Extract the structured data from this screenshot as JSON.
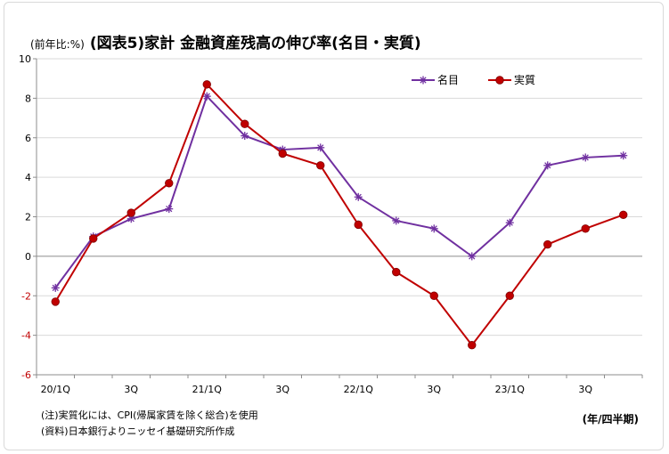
{
  "title_unit": "(前年比:%)",
  "title": "(図表5)家計 金融資産残高の伸び率(名目・実質)",
  "notes": {
    "line1": "(注)実質化には、CPI(帰属家賃を除く総合)を使用",
    "line2": "(資料)日本銀行よりニッセイ基礎研究所作成"
  },
  "x_unit": "(年/四半期)",
  "chart_data": {
    "type": "line",
    "title": "(図表5)家計 金融資産残高の伸び率(名目・実質)",
    "ylabel": "(前年比:%)",
    "xlabel": "(年/四半期)",
    "ylim": [
      -6,
      10
    ],
    "yticks": [
      -6,
      -4,
      -2,
      0,
      2,
      4,
      6,
      8,
      10
    ],
    "negative_tick_color": "#c00000",
    "grid": "horizontal",
    "legend_position": "top-right",
    "categories": [
      "20/1Q",
      "20/2Q",
      "20/3Q",
      "20/4Q",
      "21/1Q",
      "21/2Q",
      "21/3Q",
      "21/4Q",
      "22/1Q",
      "22/2Q",
      "22/3Q",
      "22/4Q",
      "23/1Q",
      "23/2Q",
      "23/3Q",
      "23/4Q"
    ],
    "tick_labels": [
      "20/1Q",
      "",
      "3Q",
      "",
      "21/1Q",
      "",
      "3Q",
      "",
      "22/1Q",
      "",
      "3Q",
      "",
      "23/1Q",
      "",
      "3Q",
      ""
    ],
    "series": [
      {
        "name": "名目",
        "color": "#7030a0",
        "marker": "asterisk",
        "values": [
          -1.6,
          1.0,
          1.9,
          2.4,
          8.1,
          6.1,
          5.4,
          5.5,
          3.0,
          1.8,
          1.4,
          0.0,
          1.7,
          4.6,
          5.0,
          5.1
        ]
      },
      {
        "name": "実質",
        "color": "#c00000",
        "marker": "circle",
        "values": [
          -2.3,
          0.9,
          2.2,
          3.7,
          8.7,
          6.7,
          5.2,
          4.6,
          1.6,
          -0.8,
          -2.0,
          -4.5,
          -2.0,
          0.6,
          1.4,
          2.1
        ]
      }
    ]
  }
}
